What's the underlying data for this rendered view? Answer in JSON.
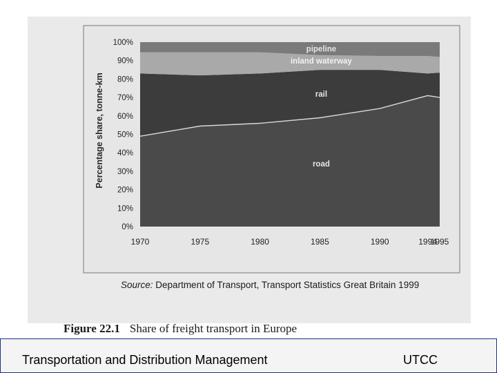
{
  "chart_data": {
    "type": "area",
    "stacked": true,
    "x": [
      1970,
      1975,
      1980,
      1985,
      1990,
      1994,
      1995
    ],
    "x_tick_labels": [
      "1970",
      "1975",
      "1980",
      "1985",
      "1990",
      "1994",
      "1995"
    ],
    "ylabel": "Percentage share, tonne-km",
    "ylim": [
      0,
      100
    ],
    "y_tick_labels": [
      "0%",
      "10%",
      "20%",
      "30%",
      "40%",
      "50%",
      "60%",
      "70%",
      "80%",
      "90%",
      "100%"
    ],
    "series": [
      {
        "name": "road",
        "values": [
          49,
          54.5,
          56,
          59,
          64,
          71,
          70
        ],
        "color": "#4a4a4a"
      },
      {
        "name": "rail",
        "values": [
          34,
          27.5,
          27,
          26,
          21,
          12,
          13.5
        ],
        "color": "#3c3c3c"
      },
      {
        "name": "inland waterway",
        "values": [
          11.5,
          12.5,
          11.5,
          8,
          7.5,
          9.5,
          8.5
        ],
        "color": "#a9a9a9"
      },
      {
        "name": "pipeline",
        "values": [
          5.5,
          5.5,
          5.5,
          7,
          7.5,
          7.5,
          8
        ],
        "color": "#7a7a7a"
      }
    ]
  },
  "source": {
    "label": "Source:",
    "text": "Department of Transport, Transport Statistics Great Britain 1999"
  },
  "figure": {
    "number": "Figure 22.1",
    "caption": "Share of freight transport in Europe"
  },
  "footer": {
    "title": "Transportation and Distribution Management",
    "org": "UTCC",
    "border_color": "#1a2f8c"
  }
}
